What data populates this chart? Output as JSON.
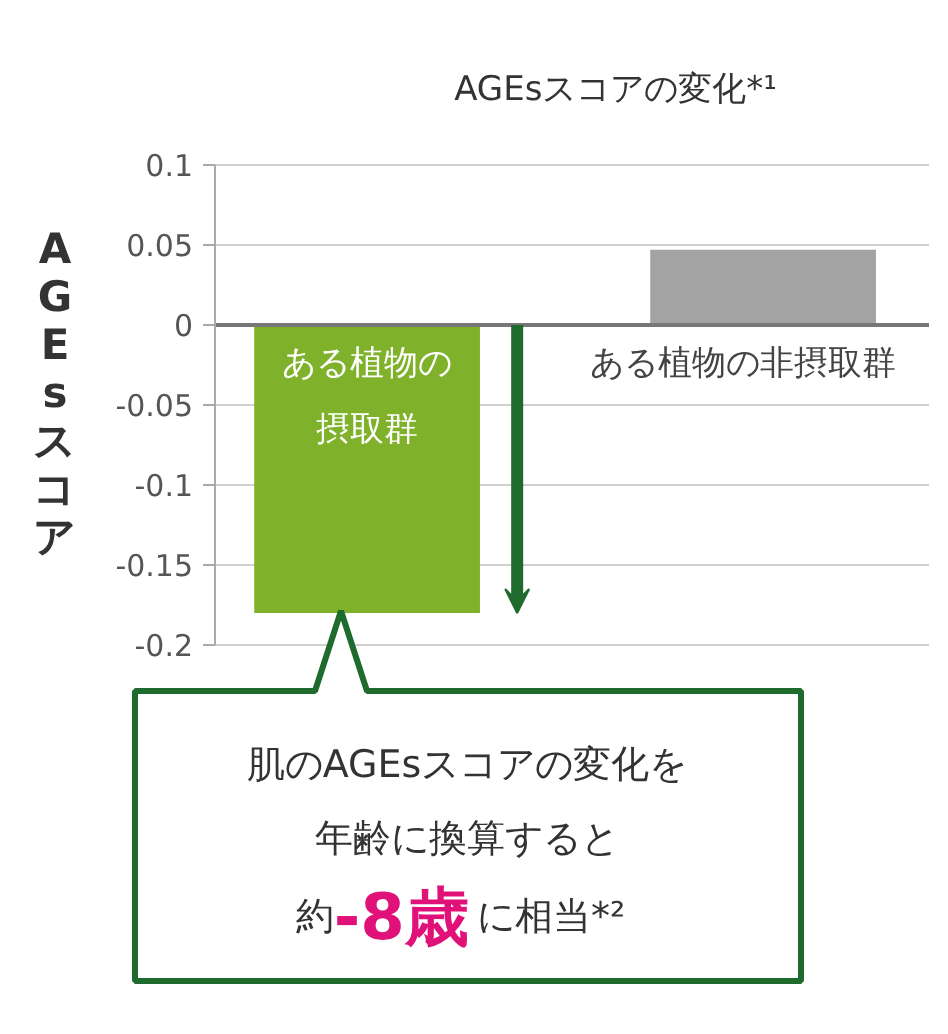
{
  "chart_data": {
    "type": "bar",
    "title": "AGEsスコアの変化*¹",
    "ylabel": "AGEsスコア",
    "categories": [
      "ある植物の摂取群",
      "ある植物の非摂取群"
    ],
    "values": [
      -0.18,
      0.047
    ],
    "colors": [
      "#7fb12a",
      "#a3a3a3"
    ],
    "ylim": [
      -0.2,
      0.1
    ],
    "yticks": [
      -0.2,
      -0.15,
      -0.1,
      -0.05,
      0,
      0.05,
      0.1
    ],
    "grid": "y",
    "annotations": [
      "肌のAGEsスコアの変化を",
      "年齢に換算すると",
      "約",
      "-8歳",
      "に相当*²"
    ]
  }
}
